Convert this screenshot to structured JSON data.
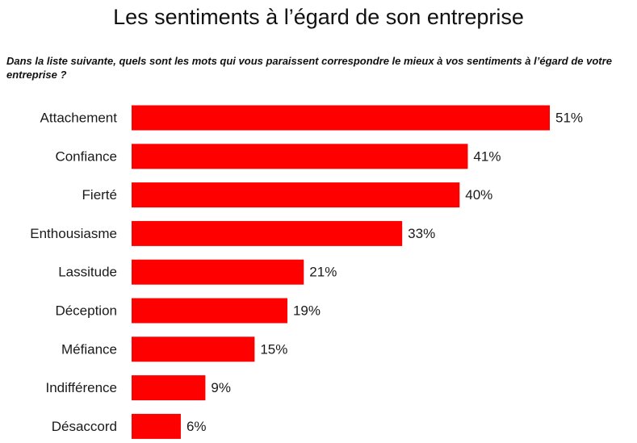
{
  "title": "Les sentiments à l’égard de son entreprise",
  "question": "Dans la liste suivante, quels sont les mots qui vous paraissent correspondre le mieux à vos sentiments à l’égard de votre entreprise ?",
  "colors": {
    "bar": "#ff0000"
  },
  "chart_data": {
    "type": "bar",
    "orientation": "horizontal",
    "title": "Les sentiments à l’égard de son entreprise",
    "subtitle": "Dans la liste suivante, quels sont les mots qui vous paraissent correspondre le mieux à vos sentiments à l’égard de votre entreprise ?",
    "xlabel": "",
    "ylabel": "",
    "unit": "%",
    "categories": [
      "Attachement",
      "Confiance",
      "Fierté",
      "Enthousiasme",
      "Lassitude",
      "Déception",
      "Méfiance",
      "Indifférence",
      "Désaccord"
    ],
    "values": [
      51,
      41,
      40,
      33,
      21,
      19,
      15,
      9,
      6
    ],
    "value_labels": [
      "51%",
      "41%",
      "40%",
      "33%",
      "21%",
      "19%",
      "15%",
      "9%",
      "6%"
    ],
    "xlim": [
      0,
      51
    ],
    "grid": false,
    "legend": "none"
  }
}
